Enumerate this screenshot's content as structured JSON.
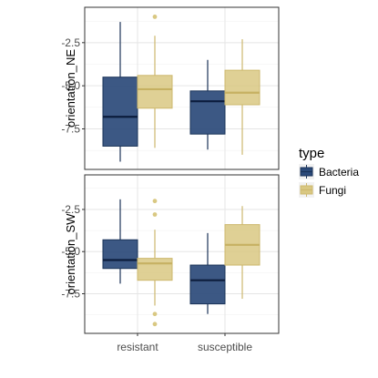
{
  "chart_data": {
    "type": "boxplot",
    "facet_variable": "facet",
    "x_categories": [
      "resistant",
      "susceptible"
    ],
    "x_tick_labels": [
      "resistant",
      "susceptible"
    ],
    "y_ticks": [
      -2.5,
      -5.0,
      -7.5
    ],
    "y_tick_labels": [
      "-2.5",
      "-5.0",
      "-7.5"
    ],
    "y_range": [
      -9.85,
      -0.45
    ],
    "grid": true,
    "legend": {
      "title": "type",
      "position": "right",
      "entries": [
        "Bacteria",
        "Fungi"
      ]
    },
    "series": [
      {
        "name": "Bacteria",
        "color": "#2b4a7a"
      },
      {
        "name": "Fungi",
        "color": "#d9c882"
      }
    ],
    "panels": [
      {
        "ylabel": "orientation_NE",
        "boxes": [
          {
            "category": "resistant",
            "series": "Bacteria",
            "whisker_low": -9.4,
            "q1": -8.5,
            "median": -6.8,
            "q3": -4.5,
            "whisker_high": -1.3,
            "outliers": []
          },
          {
            "category": "resistant",
            "series": "Fungi",
            "whisker_low": -8.6,
            "q1": -6.3,
            "median": -5.2,
            "q3": -4.4,
            "whisker_high": -2.1,
            "outliers": [
              -1.0
            ]
          },
          {
            "category": "susceptible",
            "series": "Bacteria",
            "whisker_low": -8.7,
            "q1": -7.8,
            "median": -5.9,
            "q3": -5.3,
            "whisker_high": -3.5,
            "outliers": []
          },
          {
            "category": "susceptible",
            "series": "Fungi",
            "whisker_low": -9.0,
            "q1": -6.1,
            "median": -5.4,
            "q3": -4.1,
            "whisker_high": -2.3,
            "outliers": []
          }
        ]
      },
      {
        "ylabel": "orientation_SW",
        "boxes": [
          {
            "category": "resistant",
            "series": "Bacteria",
            "whisker_low": -6.9,
            "q1": -6.0,
            "median": -5.5,
            "q3": -4.3,
            "whisker_high": -1.9,
            "outliers": []
          },
          {
            "category": "resistant",
            "series": "Fungi",
            "whisker_low": -8.2,
            "q1": -6.7,
            "median": -5.7,
            "q3": -5.4,
            "whisker_high": -3.7,
            "outliers": [
              -2.0,
              -2.8,
              -8.7,
              -9.3
            ]
          },
          {
            "category": "susceptible",
            "series": "Bacteria",
            "whisker_low": -8.7,
            "q1": -8.1,
            "median": -6.7,
            "q3": -5.8,
            "whisker_high": -3.9,
            "outliers": []
          },
          {
            "category": "susceptible",
            "series": "Fungi",
            "whisker_low": -7.8,
            "q1": -5.8,
            "median": -4.6,
            "q3": -3.4,
            "whisker_high": -2.3,
            "outliers": []
          }
        ]
      }
    ]
  }
}
